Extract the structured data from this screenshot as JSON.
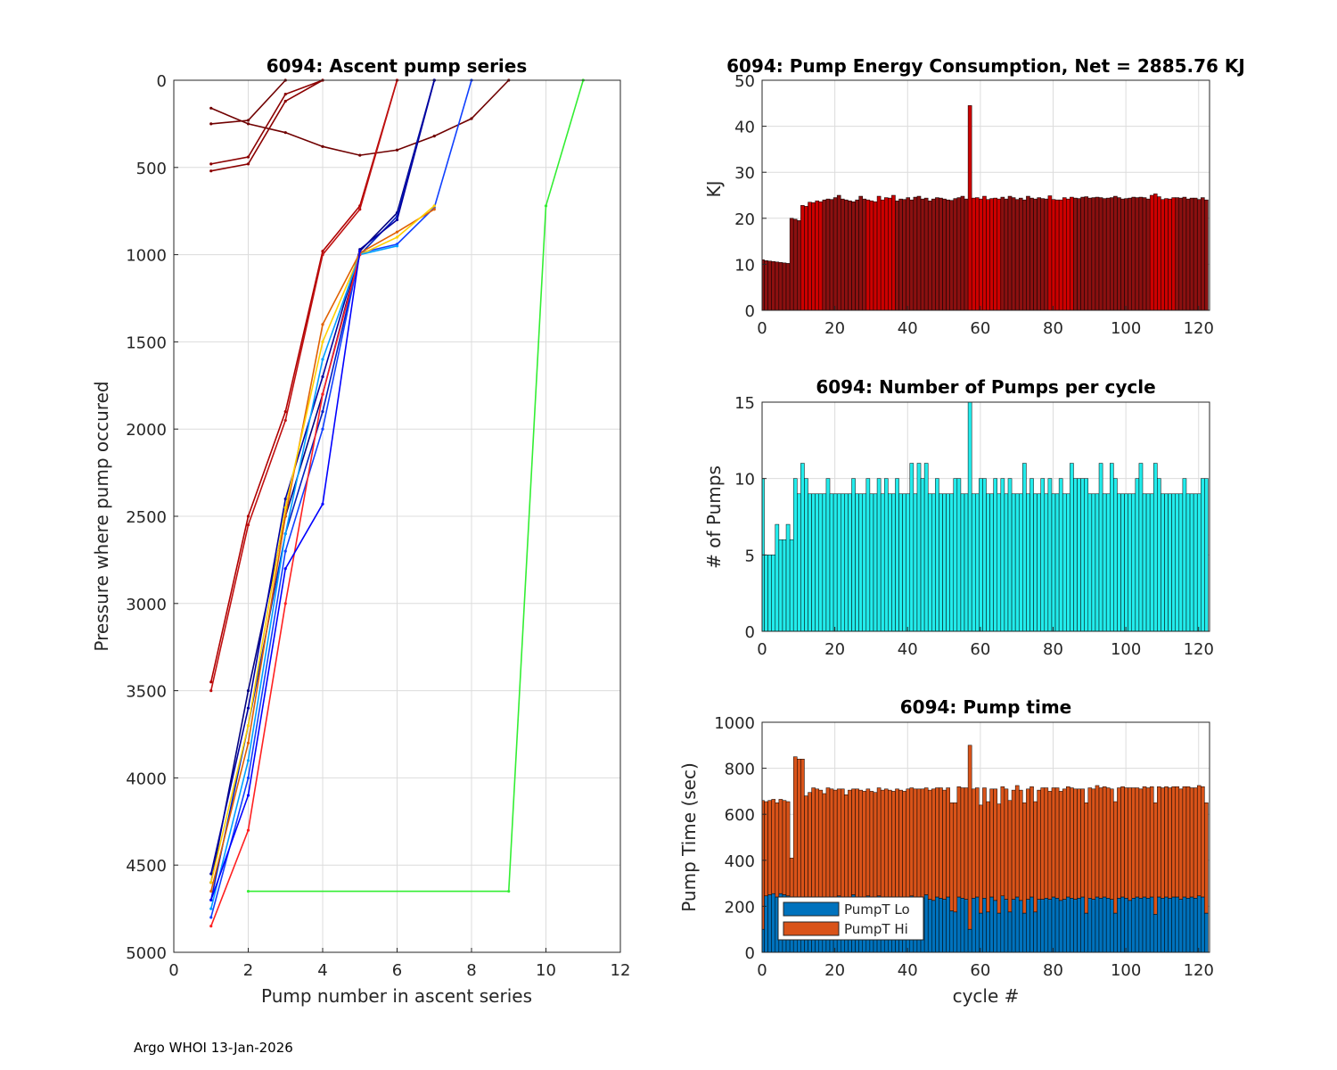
{
  "footer": "Argo WHOI 13-Jan-2026",
  "colors": {
    "energy": "#cc0000",
    "energy_dark": "#8b1010",
    "pumps": "#22ecec",
    "pump_lo": "#0072bd",
    "pump_hi": "#d95319",
    "series_green": "#33ee33"
  },
  "chart_data": [
    {
      "id": "ascent",
      "type": "line",
      "title": "6094: Ascent pump series",
      "xlabel": "Pump number in ascent series",
      "ylabel": "Pressure where pump occured",
      "xlim": [
        0,
        12
      ],
      "ylim": [
        0,
        5000
      ],
      "y_reversed": true,
      "xticks": [
        "0",
        "2",
        "4",
        "6",
        "8",
        "10",
        "12"
      ],
      "yticks": [
        "0",
        "500",
        "1000",
        "1500",
        "2000",
        "2500",
        "3000",
        "3500",
        "4000",
        "4500",
        "5000"
      ],
      "series": [
        {
          "name": "early-1",
          "color": "#8b0000",
          "x": [
            1,
            2,
            3,
            4
          ],
          "y": [
            480,
            440,
            80,
            0
          ]
        },
        {
          "name": "early-2",
          "color": "#8b0000",
          "x": [
            1,
            2,
            3,
            4
          ],
          "y": [
            520,
            480,
            120,
            0
          ]
        },
        {
          "name": "early-3",
          "color": "#700000",
          "x": [
            1,
            2,
            3,
            4,
            5,
            6,
            7,
            8,
            9
          ],
          "y": [
            160,
            250,
            300,
            380,
            430,
            400,
            320,
            220,
            0
          ]
        },
        {
          "name": "early-4",
          "color": "#700000",
          "x": [
            1,
            2,
            3
          ],
          "y": [
            250,
            230,
            0
          ]
        },
        {
          "name": "mid-1",
          "color": "#b00000",
          "x": [
            1,
            2,
            3,
            4,
            5,
            6
          ],
          "y": [
            3450,
            2500,
            1900,
            980,
            720,
            0
          ]
        },
        {
          "name": "mid-2",
          "color": "#c01010",
          "x": [
            1,
            2,
            3,
            4,
            5,
            6
          ],
          "y": [
            3500,
            2550,
            1950,
            1000,
            740,
            0
          ]
        },
        {
          "name": "deep-a",
          "color": "#000080",
          "x": [
            1,
            2,
            3,
            4,
            5,
            6,
            7
          ],
          "y": [
            4600,
            3500,
            2500,
            1800,
            980,
            760,
            0
          ]
        },
        {
          "name": "deep-b",
          "color": "#0020c0",
          "x": [
            1,
            2,
            3,
            4,
            5,
            6,
            7
          ],
          "y": [
            4700,
            3700,
            2600,
            1900,
            1000,
            780,
            0
          ]
        },
        {
          "name": "deep-c",
          "color": "#1040ff",
          "x": [
            1,
            2,
            3,
            4,
            5,
            6,
            7,
            8
          ],
          "y": [
            4800,
            4000,
            2700,
            2000,
            990,
            940,
            730,
            0
          ]
        },
        {
          "name": "deep-d",
          "color": "#0000a0",
          "x": [
            1,
            2,
            3,
            4,
            5,
            6,
            7
          ],
          "y": [
            4550,
            3600,
            2400,
            1700,
            970,
            800,
            0
          ]
        },
        {
          "name": "deep-e",
          "color": "#e06000",
          "x": [
            1,
            2,
            3,
            4,
            5,
            6,
            7
          ],
          "y": [
            4650,
            3800,
            2500,
            1400,
            990,
            870,
            740
          ]
        },
        {
          "name": "deep-f",
          "color": "#ffd000",
          "x": [
            1,
            2,
            3,
            4,
            5,
            6,
            7
          ],
          "y": [
            4600,
            3700,
            2450,
            1500,
            1000,
            900,
            720
          ]
        },
        {
          "name": "deep-g",
          "color": "#00a0ff",
          "x": [
            1,
            2,
            3,
            4,
            5,
            6
          ],
          "y": [
            4750,
            3900,
            2600,
            1600,
            1000,
            950
          ]
        },
        {
          "name": "deep-h",
          "color": "#ff2020",
          "x": [
            1,
            2,
            3,
            4,
            5
          ],
          "y": [
            4850,
            4300,
            3000,
            1800,
            1000
          ]
        },
        {
          "name": "deep-i",
          "color": "#0000ff",
          "x": [
            1,
            2,
            3,
            4,
            5
          ],
          "y": [
            4700,
            4100,
            2800,
            2430,
            980
          ]
        },
        {
          "name": "outlier",
          "color": "#33ee33",
          "x": [
            2,
            9,
            10,
            11
          ],
          "y": [
            4650,
            4650,
            720,
            0
          ]
        }
      ]
    },
    {
      "id": "energy",
      "type": "bar",
      "title": "6094: Pump Energy Consumption,  Net = 2885.76 KJ",
      "xlabel": "",
      "ylabel": "KJ",
      "xlim": [
        0,
        123
      ],
      "ylim": [
        0,
        50
      ],
      "xticks": [
        "0",
        "20",
        "40",
        "60",
        "80",
        "100",
        "120"
      ],
      "yticks": [
        "0",
        "10",
        "20",
        "30",
        "40",
        "50"
      ],
      "values": [
        11,
        10.8,
        10.7,
        10.6,
        10.5,
        10.4,
        10.3,
        10.2,
        20,
        19.8,
        19.5,
        22.8,
        22.6,
        23.5,
        23.4,
        23.8,
        23.6,
        24,
        24.2,
        24.1,
        24.5,
        25,
        24.2,
        24,
        23.8,
        23.6,
        24,
        24.8,
        24.2,
        24,
        23.8,
        23.6,
        24.8,
        24,
        24.5,
        24.4,
        25,
        23.8,
        24.2,
        24.1,
        24.5,
        24,
        24.6,
        24.8,
        24.2,
        24.4,
        23.8,
        24.2,
        24.5,
        24.4,
        24.2,
        24,
        23.9,
        24.3,
        24.5,
        24.8,
        24.2,
        44.5,
        24.4,
        24.5,
        24.2,
        24.8,
        24.1,
        24.3,
        24.4,
        24.2,
        24.6,
        24.2,
        24.8,
        24.5,
        24.1,
        24.4,
        24,
        24.8,
        24.4,
        24.2,
        24.5,
        24.3,
        24.2,
        24.9,
        24.1,
        24,
        24,
        24.5,
        24.2,
        24.6,
        24.4,
        24.3,
        24.6,
        24.7,
        24.4,
        24.5,
        24.6,
        24.5,
        24.3,
        24.4,
        24.5,
        24.8,
        24.5,
        24.2,
        24.3,
        24.4,
        24.6,
        24.5,
        24.6,
        24.5,
        24.2,
        25,
        25.3,
        24.7,
        24.1,
        24.3,
        24.2,
        24.5,
        24.5,
        24.4,
        24.6,
        24.2,
        24.4,
        24.4,
        24.1,
        24.5,
        24
      ]
    },
    {
      "id": "pumps",
      "type": "bar",
      "title": "6094: Number of Pumps per cycle",
      "xlabel": "",
      "ylabel": "# of Pumps",
      "xlim": [
        0,
        123
      ],
      "ylim": [
        0,
        15
      ],
      "xticks": [
        "0",
        "20",
        "40",
        "60",
        "80",
        "100",
        "120"
      ],
      "yticks": [
        "0",
        "5",
        "10",
        "15"
      ],
      "values": [
        10,
        5,
        5,
        5,
        7,
        6,
        6,
        7,
        6,
        10,
        9,
        11,
        10,
        9,
        9,
        9,
        9,
        9,
        10,
        9,
        9,
        9,
        9,
        9,
        9,
        10,
        9,
        9,
        9,
        10,
        9,
        9,
        10,
        9,
        10,
        9,
        9,
        10,
        9,
        9,
        9,
        11,
        9,
        11,
        10,
        11,
        9,
        9,
        10,
        9,
        9,
        9,
        9,
        10,
        10,
        9,
        9,
        15,
        9,
        9,
        10,
        10,
        9,
        9,
        10,
        9,
        10,
        9,
        10,
        9,
        9,
        9,
        11,
        9,
        10,
        9,
        9,
        10,
        9,
        10,
        9,
        9,
        10,
        9,
        9,
        11,
        10,
        10,
        10,
        10,
        9,
        9,
        9,
        11,
        9,
        9,
        11,
        10,
        9,
        9,
        9,
        9,
        9,
        10,
        11,
        9,
        9,
        9,
        11,
        10,
        9,
        9,
        9,
        9,
        9,
        9,
        10,
        9,
        9,
        9,
        9,
        10,
        10
      ]
    },
    {
      "id": "pumptime",
      "type": "bar",
      "title": "6094: Pump time",
      "xlabel": "cycle #",
      "ylabel": "Pump Time (sec)",
      "xlim": [
        0,
        123
      ],
      "ylim": [
        0,
        1000
      ],
      "xticks": [
        "0",
        "20",
        "40",
        "60",
        "80",
        "100",
        "120"
      ],
      "yticks": [
        "0",
        "200",
        "400",
        "600",
        "800",
        "1000"
      ],
      "legend": [
        "PumpT Lo",
        "PumpT Hi"
      ],
      "legend_location": "bottom-left",
      "series": [
        {
          "name": "PumpT Lo",
          "values": [
            100,
            245,
            250,
            255,
            240,
            255,
            250,
            245,
            95,
            240,
            235,
            230,
            200,
            230,
            240,
            235,
            230,
            225,
            235,
            240,
            230,
            245,
            240,
            225,
            230,
            250,
            240,
            235,
            230,
            245,
            230,
            225,
            245,
            230,
            240,
            235,
            230,
            240,
            230,
            225,
            235,
            245,
            230,
            240,
            235,
            250,
            230,
            225,
            240,
            235,
            230,
            240,
            180,
            175,
            240,
            235,
            230,
            100,
            235,
            240,
            170,
            235,
            175,
            240,
            225,
            170,
            245,
            230,
            175,
            230,
            240,
            225,
            170,
            230,
            240,
            175,
            230,
            230,
            235,
            230,
            240,
            235,
            225,
            230,
            240,
            235,
            230,
            235,
            240,
            170,
            235,
            230,
            240,
            235,
            240,
            235,
            230,
            170,
            235,
            240,
            235,
            225,
            235,
            240,
            235,
            240,
            235,
            240,
            165,
            240,
            235,
            240,
            235,
            240,
            240,
            230,
            240,
            235,
            240,
            235,
            245,
            240,
            170
          ]
        },
        {
          "name": "PumpT Hi",
          "values": [
            560,
            410,
            410,
            410,
            410,
            410,
            410,
            410,
            315,
            610,
            605,
            610,
            480,
            465,
            475,
            475,
            475,
            465,
            480,
            470,
            475,
            465,
            470,
            460,
            475,
            460,
            470,
            470,
            470,
            465,
            470,
            470,
            470,
            475,
            470,
            470,
            470,
            470,
            475,
            475,
            475,
            470,
            480,
            470,
            475,
            465,
            475,
            485,
            475,
            480,
            475,
            475,
            470,
            475,
            480,
            480,
            485,
            800,
            475,
            475,
            470,
            480,
            480,
            470,
            485,
            475,
            475,
            480,
            485,
            475,
            485,
            480,
            480,
            480,
            480,
            480,
            475,
            485,
            480,
            470,
            475,
            480,
            475,
            480,
            480,
            480,
            480,
            475,
            470,
            480,
            480,
            480,
            485,
            480,
            480,
            480,
            480,
            485,
            480,
            480,
            480,
            490,
            480,
            475,
            475,
            480,
            480,
            480,
            485,
            480,
            480,
            480,
            480,
            480,
            480,
            480,
            480,
            485,
            475,
            480,
            480,
            480,
            480
          ]
        }
      ]
    }
  ]
}
